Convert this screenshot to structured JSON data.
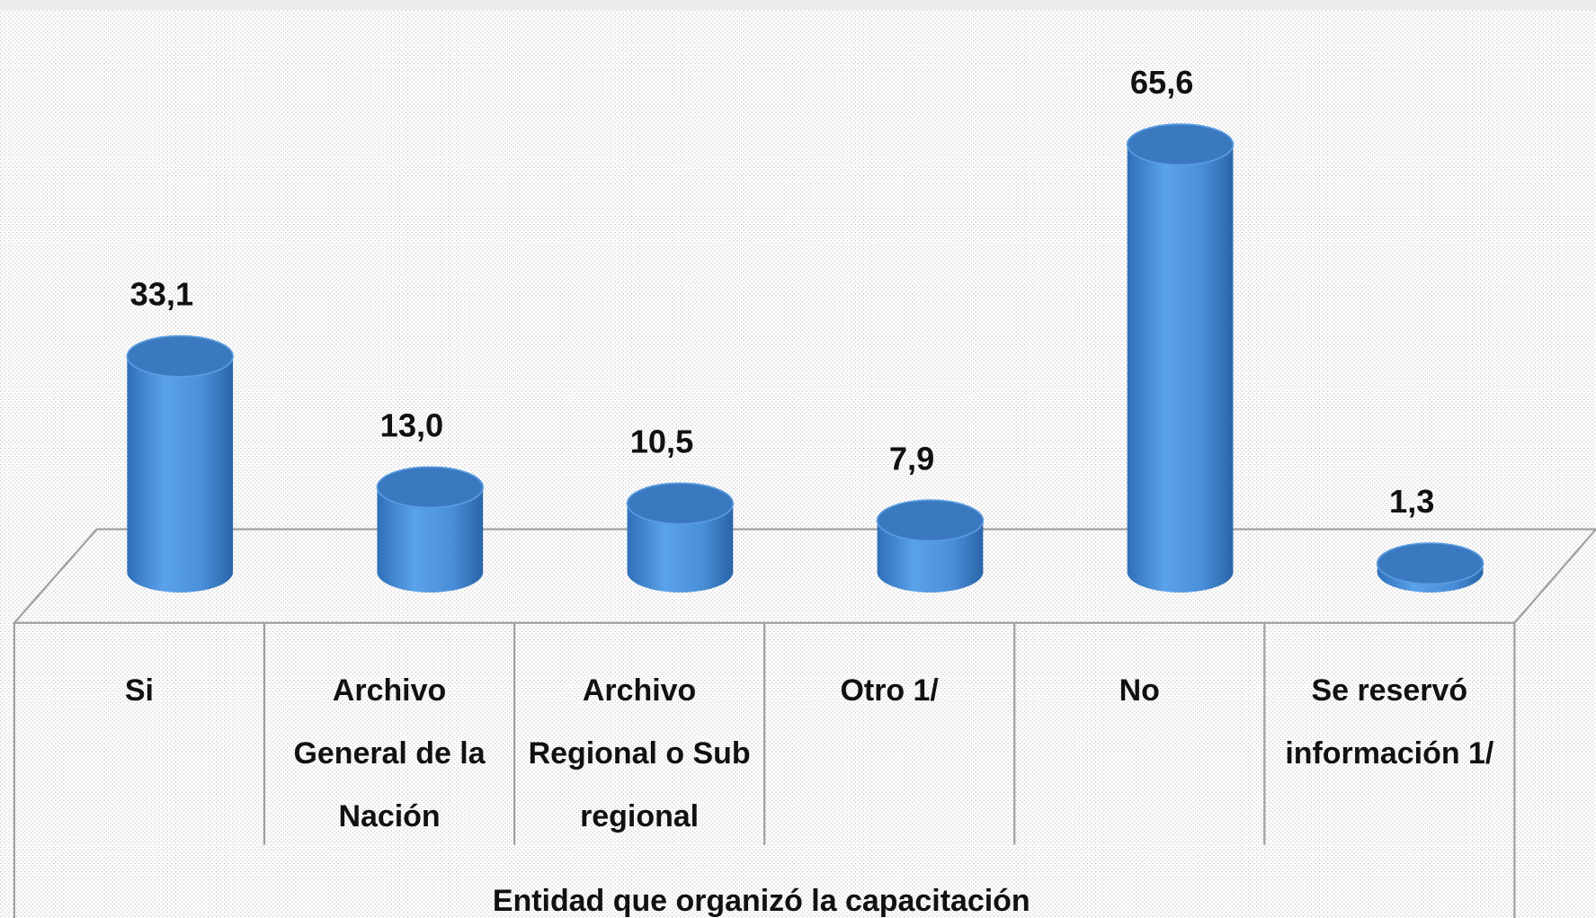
{
  "chart_data": {
    "type": "bar",
    "x_label": "Entidad que organizó la capacitación",
    "categories": [
      "Si",
      "Archivo General de la Nación",
      "Archivo Regional o Sub regional",
      "Otro 1/",
      "No",
      "Se reservó información 1/"
    ],
    "values": [
      33.1,
      13.0,
      10.5,
      7.9,
      65.6,
      1.3
    ],
    "value_labels": [
      "33,1",
      "13,0",
      "10,5",
      "7,9",
      "65,6",
      "1,3"
    ],
    "color": "#4a90d9"
  }
}
